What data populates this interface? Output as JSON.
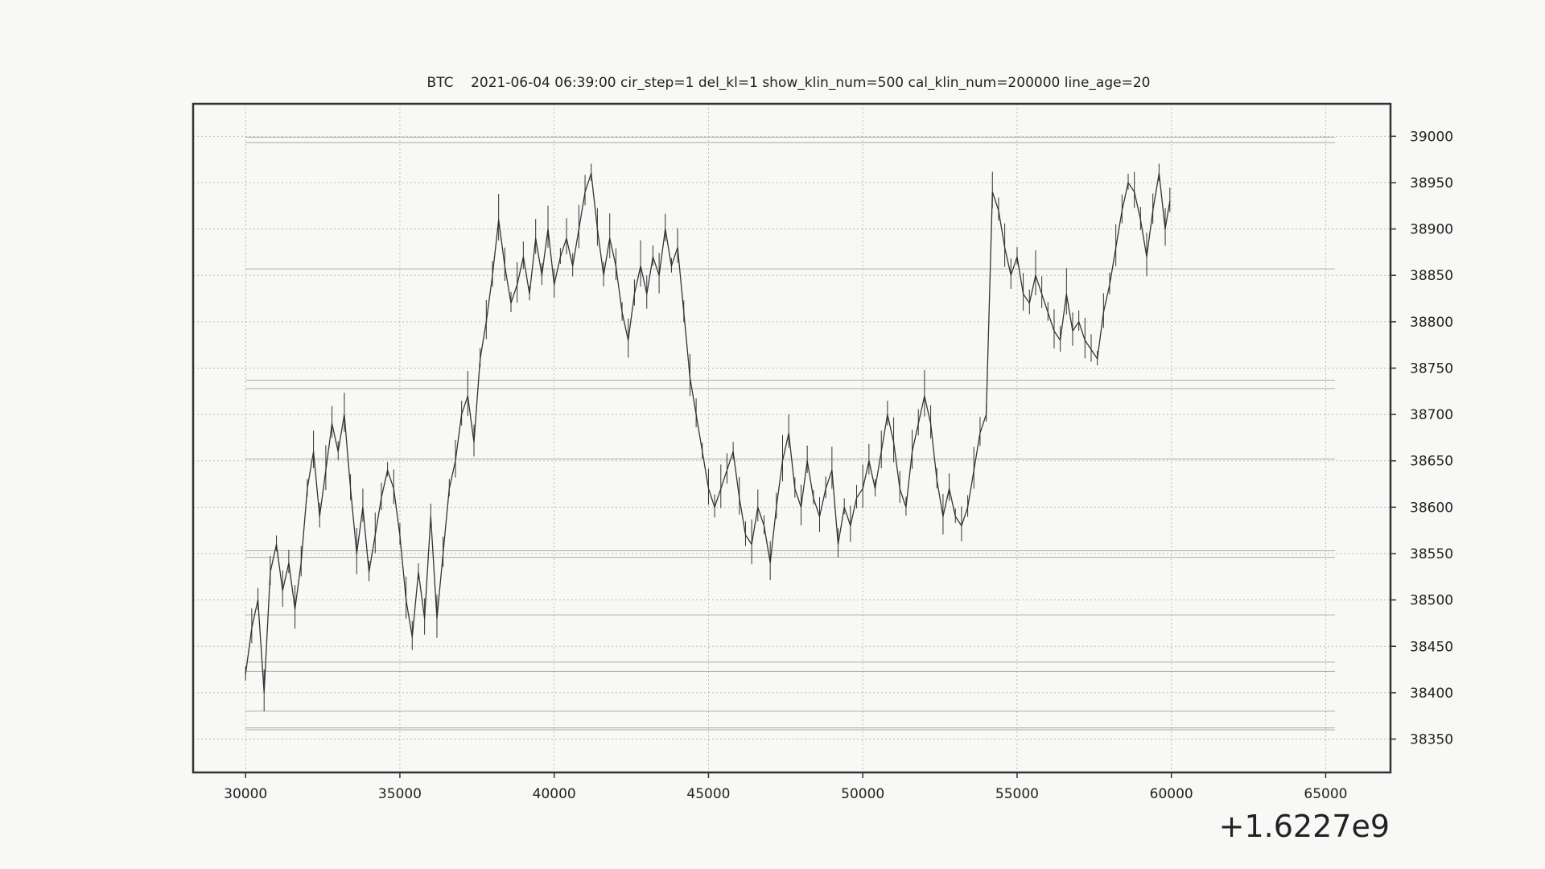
{
  "chart_data": {
    "type": "line",
    "title": "BTC    2021-06-04 06:39:00 cir_step=1 del_kl=1 show_klin_num=500 cal_klin_num=200000 line_age=20",
    "xlabel": "",
    "ylabel": "",
    "x_offset_label": "+1.6227e9",
    "xlim": [
      28300,
      67100
    ],
    "ylim": [
      38314,
      39035
    ],
    "y_axis_position": "right",
    "grid": true,
    "grid_style": "dotted",
    "x_ticks": [
      30000,
      35000,
      40000,
      45000,
      50000,
      55000,
      60000,
      65000
    ],
    "x_tick_labels": [
      "30000",
      "35000",
      "40000",
      "45000",
      "50000",
      "55000",
      "60000",
      "65000"
    ],
    "y_ticks": [
      38350,
      38400,
      38450,
      38500,
      38550,
      38600,
      38650,
      38700,
      38750,
      38800,
      38850,
      38900,
      38950,
      39000
    ],
    "y_tick_labels": [
      "38350",
      "38400",
      "38450",
      "38500",
      "38550",
      "38600",
      "38650",
      "38700",
      "38750",
      "38800",
      "38850",
      "38900",
      "38950",
      "39000"
    ],
    "horizontal_levels": {
      "x_start": 30000,
      "x_end": 65300,
      "values": [
        38999,
        38993,
        38857,
        38737,
        38728,
        38652,
        38553,
        38546,
        38484,
        38433,
        38423,
        38380,
        38362,
        38360
      ]
    },
    "series": [
      {
        "color": "#333333",
        "x": [
          30000,
          30200,
          30400,
          30600,
          30800,
          31000,
          31200,
          31400,
          31600,
          31800,
          32000,
          32200,
          32400,
          32600,
          32800,
          33000,
          33200,
          33400,
          33600,
          33800,
          34000,
          34200,
          34400,
          34600,
          34800,
          35000,
          35200,
          35400,
          35600,
          35800,
          36000,
          36200,
          36400,
          36600,
          36800,
          37000,
          37200,
          37400,
          37600,
          37800,
          38000,
          38200,
          38400,
          38600,
          38800,
          39000,
          39200,
          39400,
          39600,
          39800,
          40000,
          40200,
          40400,
          40600,
          40800,
          41000,
          41200,
          41400,
          41600,
          41800,
          42000,
          42200,
          42400,
          42600,
          42800,
          43000,
          43200,
          43400,
          43600,
          43800,
          44000,
          44200,
          44400,
          44600,
          44800,
          45000,
          45200,
          45400,
          45600,
          45800,
          46000,
          46200,
          46400,
          46600,
          46800,
          47000,
          47200,
          47400,
          47600,
          47800,
          48000,
          48200,
          48400,
          48600,
          48800,
          49000,
          49200,
          49400,
          49600,
          49800,
          50000,
          50200,
          50400,
          50600,
          50800,
          51000,
          51200,
          51400,
          51600,
          51800,
          52000,
          52200,
          52400,
          52600,
          52800,
          53000,
          53200,
          53400,
          53600,
          53800,
          54000,
          54200,
          54400,
          54600,
          54800,
          55000,
          55200,
          55400,
          55600,
          55800,
          56000,
          56200,
          56400,
          56600,
          56800,
          57000,
          57200,
          57400,
          57600,
          57800,
          58000,
          58200,
          58400,
          58600,
          58800,
          59000,
          59200,
          59400,
          59600,
          59800,
          59950
        ],
        "y": [
          38420,
          38470,
          38500,
          38400,
          38530,
          38560,
          38510,
          38540,
          38490,
          38540,
          38620,
          38660,
          38590,
          38640,
          38690,
          38660,
          38700,
          38620,
          38550,
          38600,
          38530,
          38570,
          38610,
          38640,
          38620,
          38570,
          38500,
          38460,
          38530,
          38480,
          38590,
          38480,
          38550,
          38620,
          38650,
          38700,
          38720,
          38670,
          38760,
          38800,
          38850,
          38910,
          38860,
          38820,
          38840,
          38870,
          38830,
          38890,
          38850,
          38900,
          38840,
          38870,
          38890,
          38860,
          38900,
          38940,
          38960,
          38900,
          38850,
          38890,
          38860,
          38810,
          38780,
          38830,
          38860,
          38830,
          38870,
          38850,
          38900,
          38860,
          38880,
          38810,
          38740,
          38700,
          38660,
          38620,
          38600,
          38620,
          38640,
          38660,
          38610,
          38570,
          38560,
          38600,
          38580,
          38540,
          38600,
          38650,
          38680,
          38620,
          38600,
          38650,
          38610,
          38590,
          38620,
          38640,
          38560,
          38600,
          38580,
          38610,
          38620,
          38650,
          38620,
          38660,
          38700,
          38670,
          38620,
          38600,
          38660,
          38690,
          38720,
          38690,
          38630,
          38590,
          38620,
          38590,
          38580,
          38600,
          38640,
          38680,
          38700,
          38940,
          38920,
          38880,
          38850,
          38870,
          38830,
          38820,
          38850,
          38830,
          38810,
          38790,
          38780,
          38830,
          38790,
          38800,
          38780,
          38770,
          38760,
          38810,
          38840,
          38880,
          38920,
          38950,
          38940,
          38910,
          38870,
          38920,
          38960,
          38900,
          38930
        ]
      }
    ]
  }
}
